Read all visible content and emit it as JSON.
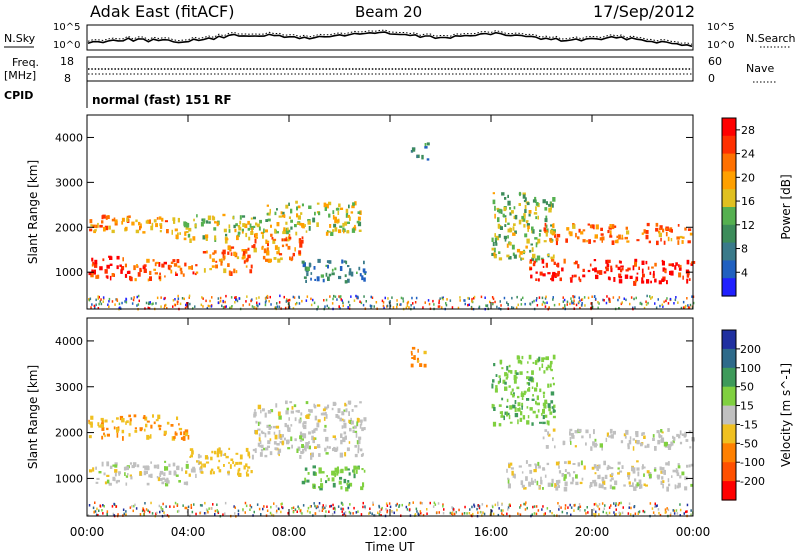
{
  "header": {
    "station": "Adak East (fitACF)",
    "beam": "Beam 20",
    "date": "17/Sep/2012"
  },
  "strip_labels": {
    "nsky": "N.Sky",
    "nsearch": "N.Search",
    "freq": "Freq.",
    "mhz": "[MHz]",
    "nave": "Nave",
    "cpid": "CPID",
    "cpid_value": "normal (fast) 151 RF"
  },
  "strip_ticks": {
    "noise_top": "10^5",
    "noise_bottom": "10^0",
    "freq_left": [
      "18",
      "8"
    ],
    "nave_right": [
      "60",
      "0"
    ]
  },
  "chart_data": [
    {
      "type": "heatmap",
      "title": "",
      "xlabel": "",
      "ylabel": "Slant Range [km]",
      "x_ticks": [
        "00:00",
        "04:00",
        "08:00",
        "12:00",
        "16:00",
        "20:00",
        "00:00"
      ],
      "xlim_hours": [
        0,
        24
      ],
      "y_ticks": [
        1000,
        2000,
        3000,
        4000
      ],
      "ylim": [
        180,
        4500
      ],
      "colorbar": {
        "label": "Power [dB]",
        "ticks": [
          4,
          8,
          12,
          16,
          20,
          24,
          28
        ],
        "range": [
          0,
          30
        ],
        "colors": [
          "#2020ff",
          "#2060c0",
          "#3a7a8a",
          "#3c8c5a",
          "#55b050",
          "#e0c020",
          "#ffa000",
          "#ff7000",
          "#ff3000",
          "#ff0000"
        ]
      },
      "echo_bands": [
        {
          "hours": [
            0.0,
            1.5
          ],
          "range_km": [
            900,
            1400
          ],
          "power_db": 28
        },
        {
          "hours": [
            1.5,
            4.5
          ],
          "range_km": [
            850,
            1300
          ],
          "power_db": 24
        },
        {
          "hours": [
            4.5,
            6.5
          ],
          "range_km": [
            1000,
            1600
          ],
          "power_db": 22
        },
        {
          "hours": [
            6.5,
            8.5
          ],
          "range_km": [
            1300,
            1900
          ],
          "power_db": 22
        },
        {
          "hours": [
            0.0,
            3.5
          ],
          "range_km": [
            1900,
            2300
          ],
          "power_db": 20
        },
        {
          "hours": [
            3.5,
            7.0
          ],
          "range_km": [
            1700,
            2300
          ],
          "power_db": 16
        },
        {
          "hours": [
            7.0,
            10.8
          ],
          "range_km": [
            1900,
            2600
          ],
          "power_db": 16
        },
        {
          "hours": [
            8.5,
            11.0
          ],
          "range_km": [
            800,
            1300
          ],
          "power_db": 8
        },
        {
          "hours": [
            12.8,
            13.5
          ],
          "range_km": [
            3500,
            3900
          ],
          "power_db": 10
        },
        {
          "hours": [
            16.0,
            18.5
          ],
          "range_km": [
            1300,
            2800
          ],
          "power_db": 14
        },
        {
          "hours": [
            17.5,
            24.0
          ],
          "range_km": [
            800,
            1300
          ],
          "power_db": 28
        },
        {
          "hours": [
            18.0,
            24.0
          ],
          "range_km": [
            1700,
            2100
          ],
          "power_db": 22
        }
      ]
    },
    {
      "type": "heatmap",
      "title": "",
      "xlabel": "Time UT",
      "ylabel": "Slant Range [km]",
      "x_ticks": [
        "00:00",
        "04:00",
        "08:00",
        "12:00",
        "16:00",
        "20:00",
        "00:00"
      ],
      "xlim_hours": [
        0,
        24
      ],
      "y_ticks": [
        1000,
        2000,
        3000,
        4000
      ],
      "ylim": [
        180,
        4500
      ],
      "colorbar": {
        "label": "Velocity [m s^-1]",
        "ticks": [
          "200",
          "100",
          "50",
          "15",
          "-15",
          "-50",
          "-100",
          "-200"
        ],
        "colors": [
          "#2030a0",
          "#2e6a8a",
          "#3e9a5a",
          "#80d040",
          "#c0c0c0",
          "#f0c020",
          "#ff8000",
          "#ff5000",
          "#ff0000"
        ]
      },
      "echo_bands": [
        {
          "hours": [
            0.0,
            4.5
          ],
          "range_km": [
            900,
            1400
          ],
          "velocity": 0
        },
        {
          "hours": [
            0.0,
            4.0
          ],
          "range_km": [
            1900,
            2400
          ],
          "velocity": -50
        },
        {
          "hours": [
            4.0,
            6.5
          ],
          "range_km": [
            1100,
            1700
          ],
          "velocity": -30
        },
        {
          "hours": [
            6.5,
            11.0
          ],
          "range_km": [
            1500,
            2700
          ],
          "velocity": 0
        },
        {
          "hours": [
            8.5,
            11.0
          ],
          "range_km": [
            800,
            1300
          ],
          "velocity": 40
        },
        {
          "hours": [
            12.8,
            13.5
          ],
          "range_km": [
            3500,
            3900
          ],
          "velocity": -60
        },
        {
          "hours": [
            16.0,
            18.5
          ],
          "range_km": [
            2200,
            3700
          ],
          "velocity": 40
        },
        {
          "hours": [
            16.5,
            24.0
          ],
          "range_km": [
            800,
            1400
          ],
          "velocity": 0
        },
        {
          "hours": [
            18.0,
            24.0
          ],
          "range_km": [
            1700,
            2100
          ],
          "velocity": 0
        }
      ]
    }
  ]
}
